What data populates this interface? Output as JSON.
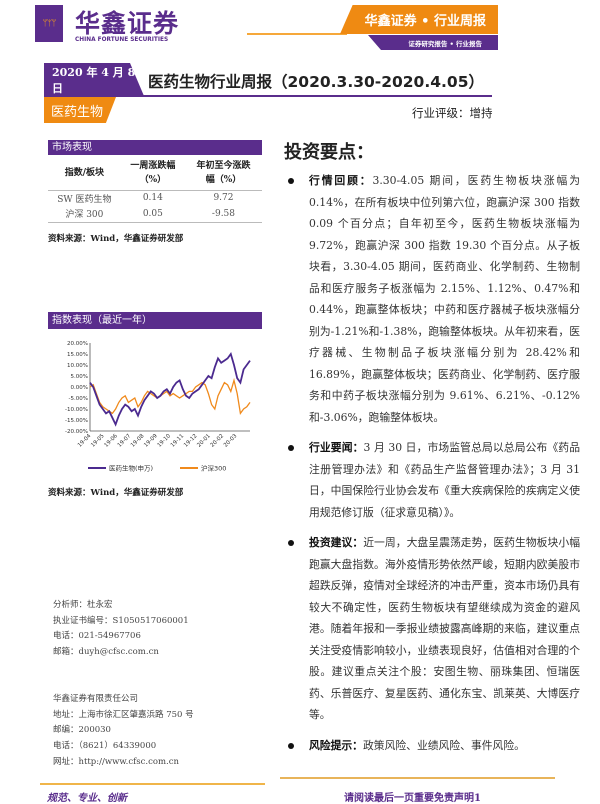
{
  "header": {
    "logo_mark": "ᛘᛘᛘ",
    "logo_cn": "华鑫证券",
    "logo_en": "CHINA FORTUNE SECURITIES",
    "banner": "华鑫证券 • 行业周报",
    "sub_banner": "证券研究报告 • 行业报告"
  },
  "report": {
    "date": "2020 年 4 月 8 日",
    "title": "医药生物行业周报（2020.3.30-2020.4.05）",
    "sector": "医药生物",
    "rating": "行业评级：增持"
  },
  "market": {
    "heading": "市场表现",
    "columns": [
      "指数/板块",
      "一周涨跌幅（%）",
      "年初至今涨跌幅（%）"
    ],
    "rows": [
      [
        "SW 医药生物",
        "0.14",
        "9.72"
      ],
      [
        "沪深 300",
        "0.05",
        "-9.58"
      ]
    ],
    "source": "资料来源：Wind，华鑫证券研发部"
  },
  "index_chart": {
    "heading": "指数表现（最近一年）",
    "source": "资料来源：Wind，华鑫证券研发部"
  },
  "chart_data": {
    "type": "line",
    "ylim": [
      -20,
      20
    ],
    "y_ticks": [
      "20.00%",
      "15.00%",
      "10.00%",
      "5.00%",
      "0.00%",
      "-5.00%",
      "-10.00%",
      "-15.00%",
      "-20.00%"
    ],
    "x_ticks": [
      "19-04",
      "19-05",
      "19-06",
      "19-07",
      "19-08",
      "19-09",
      "19-10",
      "19-11",
      "19-12",
      "20-01",
      "20-02",
      "20-03"
    ],
    "series": [
      {
        "name": "医药生物(申万)",
        "color": "#4b2a8f",
        "values": [
          2,
          0,
          -4,
          -8,
          -10,
          -12,
          -11,
          -14,
          -17,
          -13,
          -10,
          -8,
          -9,
          -11,
          -10,
          -13,
          -9,
          -6,
          -4,
          -2,
          -3,
          -5,
          -4,
          -2,
          -1,
          -3,
          0,
          2,
          3,
          -1,
          -4,
          -5,
          -3,
          -2,
          -1,
          1,
          3,
          5,
          4,
          9,
          13,
          11,
          12,
          13,
          15,
          10,
          4,
          2,
          8,
          10,
          12
        ]
      },
      {
        "name": "沪深300",
        "color": "#f08a1c",
        "values": [
          0,
          1,
          -3,
          -7,
          -9,
          -10,
          -11,
          -12,
          -10,
          -7,
          -5,
          -4,
          -7,
          -6,
          -5,
          -9,
          -7,
          -4,
          -2,
          -3,
          -4,
          -5,
          -4,
          -3,
          -2,
          -4,
          -3,
          -4,
          -5,
          -4,
          -3,
          -2,
          -2,
          0,
          1,
          2,
          1,
          -3,
          -8,
          -10,
          -4,
          -1,
          2,
          1,
          -2,
          3,
          -3,
          -12,
          -10,
          -9,
          -7
        ]
      }
    ]
  },
  "analyst": [
    "分析师：杜永宏",
    "执业证书编号：S1050517060001",
    "电话：021-54967706",
    "邮箱：duyh@cfsc.com.cn"
  ],
  "company": [
    "华鑫证券有限责任公司",
    "地址：上海市徐汇区肇嘉浜路 750 号",
    "邮编：200030",
    "电话：（8621）64339000",
    "网址：http://www.cfsc.com.cn"
  ],
  "key_points": {
    "title": "投资要点：",
    "items": [
      {
        "label": "行情回顾：",
        "text": "3.30-4.05 期间，医药生物板块涨幅为 0.14%，在所有板块中位列第六位，跑赢沪深 300 指数 0.09 个百分点；自年初至今，医药生物板块涨幅为 9.72%，跑赢沪深 300 指数 19.30 个百分点。从子板块看，3.30-4.05 期间，医药商业、化学制药、生物制品和医疗服务子板涨幅为 2.15%、1.12%、0.47%和 0.44%，跑赢整体板块；中药和医疗器械子板块涨幅分别为-1.21%和-1.38%，跑输整体板块。从年初来看，医疗器械、生物制品子板块涨幅分别为 28.42%和 16.89%，跑赢整体板块；医药商业、化学制药、医疗服务和中药子板块涨幅分别为 9.61%、6.21%、-0.12%和-3.06%，跑输整体板块。"
      },
      {
        "label": "行业要闻：",
        "text": "3 月 30 日，市场监管总局以总局公布《药品注册管理办法》和《药品生产监督管理办法》；3 月 31 日，中国保险行业协会发布《重大疾病保险的疾病定义使用规范修订版（征求意见稿）》。"
      },
      {
        "label": "投资建议：",
        "text": "近一周，大盘呈震荡走势，医药生物板块小幅跑赢大盘指数。海外疫情形势依然严峻，短期内欧美股市超跌反弹，疫情对全球经济的冲击严重，资本市场仍具有较大不确定性，医药生物板块有望继续成为资金的避风港。随着年报和一季报业绩披露高峰期的来临，建议重点关注受疫情影响较小，业绩表现良好，估值相对合理的个股。建议重点关注个股：安图生物、丽珠集团、恒瑞医药、乐普医疗、复星医药、通化东宝、凯莱英、大博医疗等。"
      },
      {
        "label": "风险提示：",
        "text": "政策风险、业绩风险、事件风险。"
      }
    ]
  },
  "footer": {
    "slogan": "规范、专业、创新",
    "disclaimer": "请阅读最后一页重要免责声明1"
  }
}
